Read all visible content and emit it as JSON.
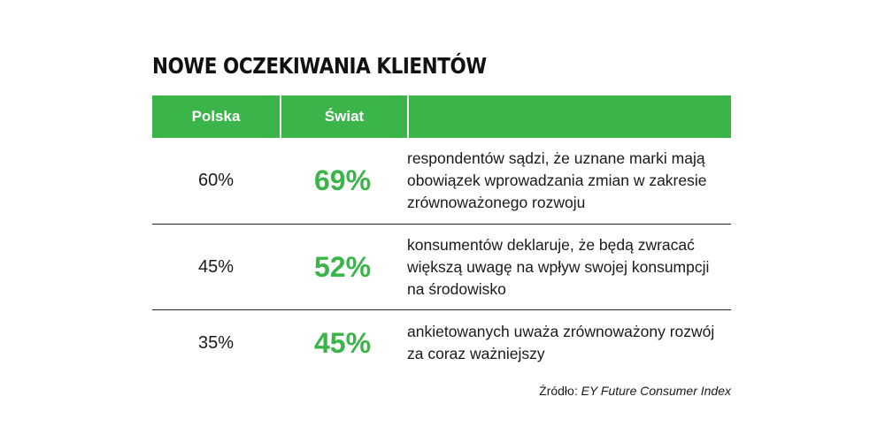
{
  "title": "NOWE OCZEKIWANIA KLIENTÓW",
  "chart_data": {
    "type": "table",
    "columns": [
      "Polska",
      "Świat",
      ""
    ],
    "rows": [
      {
        "polska": "60%",
        "swiat": "69%",
        "description": "respondentów sądzi, że uznane marki mają\nobowiązek wprowadzania zmian w zakresie\nzrównoważonego rozwoju"
      },
      {
        "polska": "45%",
        "swiat": "52%",
        "description": "konsumentów deklaruje, że będą zwracać\nwiększą uwagę na wpływ swojej konsumpcji\nna środowisko"
      },
      {
        "polska": "35%",
        "swiat": "45%",
        "description": "ankietowanych uważa zrównoważony rozwój\nza coraz ważniejszy"
      }
    ]
  },
  "source": {
    "label": "Źródło:",
    "name": "EY Future Consumer Index"
  },
  "colors": {
    "accent": "#3bb54a",
    "text": "#1a1a1a",
    "rule": "#222222"
  }
}
